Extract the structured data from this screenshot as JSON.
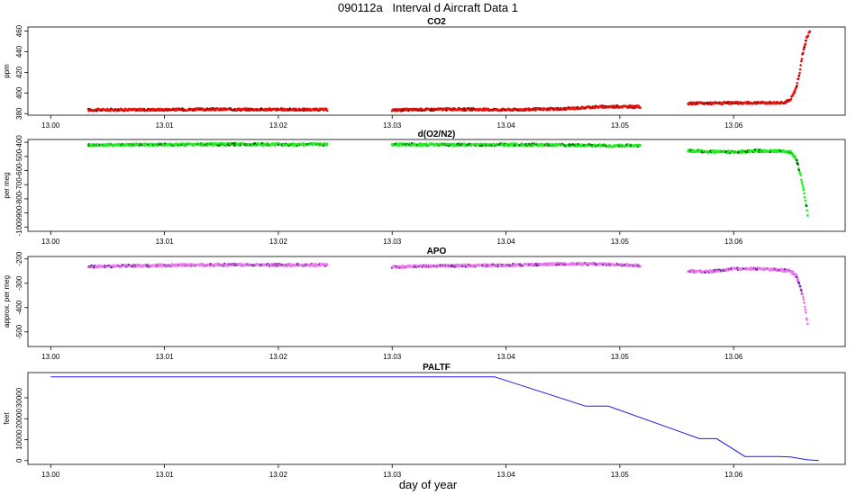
{
  "figure": {
    "title": "090112a   Interval d Aircraft Data 1",
    "xlabel": "day of year"
  },
  "chart_data": [
    {
      "type": "scatter",
      "title": "CO2",
      "ylabel": "ppm",
      "xlabel": "",
      "xlim": [
        12.998,
        13.0698
      ],
      "ylim": [
        378.5,
        464
      ],
      "x_ticks": [
        13.0,
        13.01,
        13.02,
        13.03,
        13.04,
        13.05,
        13.06
      ],
      "x_tick_labels": [
        "13.00",
        "13.01",
        "13.02",
        "13.03",
        "13.04",
        "13.05",
        "13.06"
      ],
      "y_ticks": [
        380,
        400,
        420,
        440,
        460
      ],
      "y_tick_labels": [
        "380",
        "400",
        "420",
        "440",
        "460"
      ],
      "series": [
        {
          "color": "#e8150f",
          "dark_color": "#8a0000",
          "segments": [
            {
              "x": [
                13.0033,
                13.01,
                13.015,
                13.02,
                13.0243
              ],
              "y": [
                383.6,
                383.9,
                384.2,
                384.0,
                383.9
              ]
            },
            {
              "x": [
                13.03,
                13.035,
                13.04,
                13.045,
                13.048,
                13.05,
                13.0518
              ],
              "y": [
                383.5,
                384.3,
                383.8,
                384.6,
                386.6,
                386.9,
                386.6
              ]
            },
            {
              "x": [
                13.056,
                13.059,
                13.062,
                13.064,
                13.0645
              ],
              "y": [
                390.0,
                390.2,
                390.5,
                390.6,
                391.0
              ]
            },
            {
              "x": [
                13.0645,
                13.065,
                13.0655,
                13.0658,
                13.0661,
                13.0664,
                13.0667
              ],
              "y": [
                391.0,
                393.0,
                405.0,
                420.0,
                440.0,
                453.0,
                460.0
              ]
            }
          ]
        }
      ]
    },
    {
      "type": "scatter",
      "title": "d(O2/N2)",
      "ylabel": "per meg",
      "xlabel": "",
      "xlim": [
        12.998,
        13.0698
      ],
      "ylim": [
        -1030,
        -380
      ],
      "x_ticks": [
        13.0,
        13.01,
        13.02,
        13.03,
        13.04,
        13.05,
        13.06
      ],
      "x_tick_labels": [
        "13.00",
        "13.01",
        "13.02",
        "13.03",
        "13.04",
        "13.05",
        "13.06"
      ],
      "y_ticks": [
        -400,
        -500,
        -600,
        -700,
        -800,
        -900,
        -1000
      ],
      "y_tick_labels": [
        "-400",
        "-500",
        "-600",
        "-700",
        "-800",
        "-900",
        "-1000"
      ],
      "series": [
        {
          "color": "#22ee22",
          "dark_color": "#006600",
          "segments": [
            {
              "x": [
                13.0033,
                13.01,
                13.015,
                13.02,
                13.0243
              ],
              "y": [
                -418,
                -416,
                -414,
                -415,
                -414
              ]
            },
            {
              "x": [
                13.03,
                13.035,
                13.04,
                13.045,
                13.049,
                13.0518
              ],
              "y": [
                -415,
                -417,
                -416,
                -418,
                -425,
                -422
              ]
            },
            {
              "x": [
                13.056,
                13.058,
                13.06,
                13.062,
                13.064,
                13.065
              ],
              "y": [
                -460,
                -465,
                -468,
                -460,
                -462,
                -470
              ]
            },
            {
              "x": [
                13.065,
                13.0655,
                13.0659,
                13.0662,
                13.0665
              ],
              "y": [
                -470,
                -520,
                -640,
                -760,
                -910
              ]
            }
          ]
        }
      ]
    },
    {
      "type": "scatter",
      "title": "APO",
      "ylabel": "approx. per meg",
      "xlabel": "",
      "xlim": [
        12.998,
        13.0698
      ],
      "ylim": [
        -560,
        -190
      ],
      "x_ticks": [
        13.0,
        13.01,
        13.02,
        13.03,
        13.04,
        13.05,
        13.06
      ],
      "x_tick_labels": [
        "13.00",
        "13.01",
        "13.02",
        "13.03",
        "13.04",
        "13.05",
        "13.06"
      ],
      "y_ticks": [
        -200,
        -300,
        -400,
        -500
      ],
      "y_tick_labels": [
        "-200",
        "-300",
        "-400",
        "-500"
      ],
      "series": [
        {
          "color": "#ee77ee",
          "dark_color": "#6a2a9a",
          "segments": [
            {
              "x": [
                13.0033,
                13.01,
                13.015,
                13.02,
                13.0243
              ],
              "y": [
                -232,
                -226,
                -224,
                -225,
                -225
              ]
            },
            {
              "x": [
                13.03,
                13.035,
                13.04,
                13.045,
                13.049,
                13.0518
              ],
              "y": [
                -233,
                -228,
                -226,
                -220,
                -222,
                -228
              ]
            },
            {
              "x": [
                13.056,
                13.058,
                13.06,
                13.062,
                13.064,
                13.065
              ],
              "y": [
                -250,
                -252,
                -240,
                -240,
                -245,
                -250
              ]
            },
            {
              "x": [
                13.065,
                13.0655,
                13.0659,
                13.0662,
                13.0665
              ],
              "y": [
                -250,
                -270,
                -320,
                -380,
                -470
              ]
            }
          ]
        }
      ]
    },
    {
      "type": "line",
      "title": "PALTF",
      "ylabel": "feet",
      "xlabel": "",
      "xlim": [
        12.998,
        13.0698
      ],
      "ylim": [
        -1800,
        42000
      ],
      "x_ticks": [
        13.0,
        13.01,
        13.02,
        13.03,
        13.04,
        13.05,
        13.06
      ],
      "x_tick_labels": [
        "13.00",
        "13.01",
        "13.02",
        "13.03",
        "13.04",
        "13.05",
        "13.06"
      ],
      "y_ticks": [
        0,
        10000,
        20000,
        30000
      ],
      "y_tick_labels": [
        "0",
        "10000",
        "20000",
        "30000"
      ],
      "series": [
        {
          "color": "#1a1aee",
          "x": [
            13.0,
            13.039,
            13.047,
            13.049,
            13.057,
            13.0585,
            13.061,
            13.064,
            13.065,
            13.0665,
            13.0675
          ],
          "y": [
            40000,
            40000,
            26000,
            26000,
            10500,
            10500,
            2000,
            2000,
            1700,
            400,
            0
          ]
        }
      ]
    }
  ]
}
